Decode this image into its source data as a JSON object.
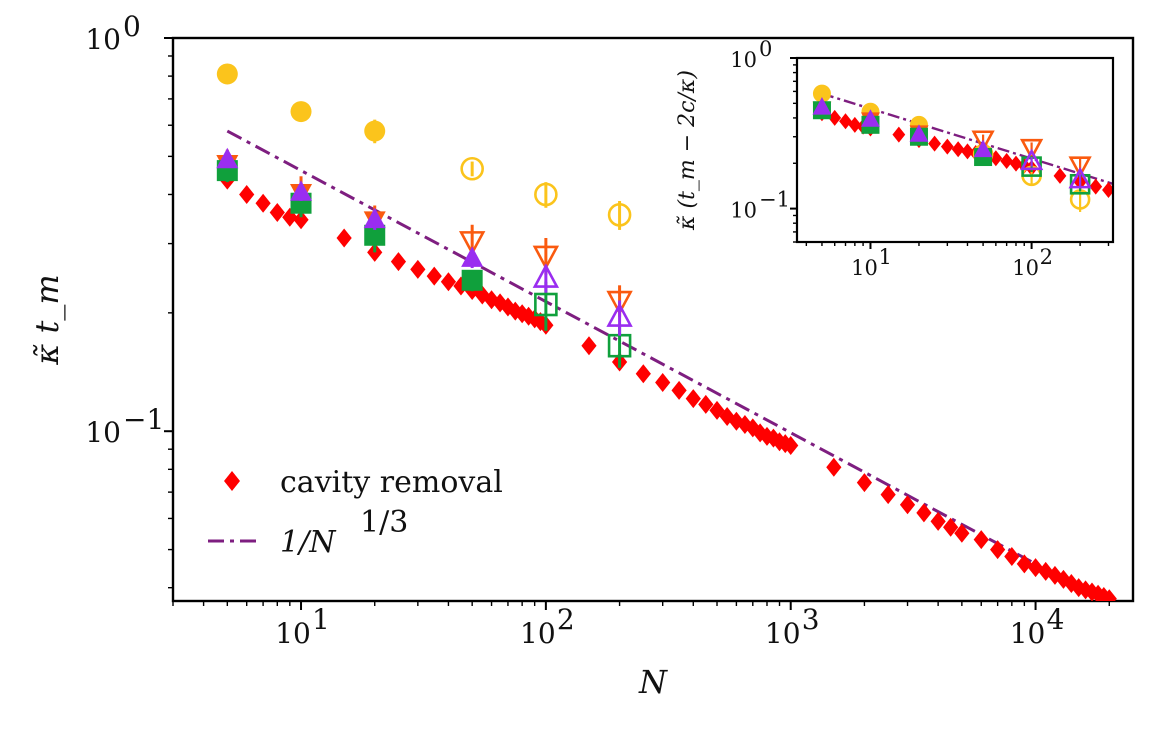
{
  "colors": {
    "red": "#ff0000",
    "yellow": "#fbc41c",
    "orange": "#fa5a0f",
    "green": "#10a03c",
    "purple": "#9a2df0",
    "dashdot": "#7e1e80"
  },
  "chart_data": [
    {
      "type": "scatter",
      "title": "",
      "xlabel": "N",
      "ylabel": "κ̃ t_m",
      "xscale": "log",
      "yscale": "log",
      "xlim": [
        3,
        25000
      ],
      "ylim": [
        0.037,
        1.0
      ],
      "x_tick_labels": [
        "10",
        "10",
        "10",
        "10"
      ],
      "x_tick_exponents": [
        "1",
        "2",
        "3",
        "4"
      ],
      "y_tick_labels": [
        "10",
        "10"
      ],
      "y_tick_exponents": [
        "0",
        "−1"
      ],
      "legend": {
        "placement": "lower-left",
        "entries": [
          {
            "label": "cavity removal",
            "marker": "diamond",
            "color": "red"
          },
          {
            "label": "1/N",
            "superscript": "1/3",
            "style": "dash-dot",
            "color": "dashdot"
          }
        ]
      },
      "series": [
        {
          "name": "cavity removal",
          "marker": "diamond",
          "color": "red",
          "x": [
            5,
            6,
            7,
            8,
            9,
            10,
            15,
            20,
            25,
            30,
            35,
            40,
            45,
            50,
            55,
            60,
            65,
            70,
            75,
            80,
            85,
            90,
            95,
            100,
            150,
            200,
            250,
            300,
            350,
            400,
            450,
            500,
            550,
            600,
            650,
            700,
            750,
            800,
            850,
            900,
            950,
            1000,
            1500,
            2000,
            2500,
            3000,
            3500,
            4000,
            4500,
            5000,
            6000,
            7000,
            8000,
            9000,
            10000,
            11000,
            12000,
            13000,
            14000,
            15000,
            16000,
            17000,
            18000,
            19000,
            20000
          ],
          "y": [
            0.435,
            0.4,
            0.38,
            0.36,
            0.35,
            0.345,
            0.31,
            0.285,
            0.27,
            0.258,
            0.248,
            0.24,
            0.234,
            0.228,
            0.222,
            0.216,
            0.212,
            0.207,
            0.202,
            0.199,
            0.196,
            0.193,
            0.19,
            0.186,
            0.165,
            0.15,
            0.14,
            0.133,
            0.127,
            0.121,
            0.117,
            0.113,
            0.109,
            0.106,
            0.104,
            0.102,
            0.099,
            0.097,
            0.096,
            0.094,
            0.093,
            0.092,
            0.081,
            0.074,
            0.069,
            0.065,
            0.062,
            0.059,
            0.057,
            0.055,
            0.053,
            0.05,
            0.048,
            0.046,
            0.045,
            0.044,
            0.043,
            0.042,
            0.041,
            0.04,
            0.0395,
            0.039,
            0.0385,
            0.038,
            0.0375
          ]
        },
        {
          "name": "1/N^(1/3) fit",
          "style": "dash-dot",
          "color": "dashdot",
          "x": [
            5,
            20000
          ],
          "y": [
            0.58,
            0.0365
          ]
        },
        {
          "name": "yellow filled circle",
          "marker": "circle",
          "filled": true,
          "color": "yellow",
          "x": [
            5,
            10,
            20
          ],
          "y": [
            0.81,
            0.65,
            0.58
          ],
          "yerr": [
            0.012,
            0.012,
            0.04
          ]
        },
        {
          "name": "yellow open circle",
          "marker": "circle",
          "filled": false,
          "color": "yellow",
          "x": [
            50,
            100,
            200
          ],
          "y": [
            0.465,
            0.4,
            0.355
          ],
          "yerr": [
            0.02,
            0.03,
            0.03
          ]
        },
        {
          "name": "orange filled triangle down",
          "marker": "triangle-down",
          "filled": true,
          "color": "orange",
          "x": [
            5,
            10,
            20
          ],
          "y": [
            0.48,
            0.405,
            0.345
          ],
          "yerr": [
            0.04,
            0.04,
            0.03
          ]
        },
        {
          "name": "orange open triangle down",
          "marker": "triangle-down",
          "filled": false,
          "color": "orange",
          "x": [
            50,
            100,
            200
          ],
          "y": [
            0.305,
            0.28,
            0.215
          ],
          "yerr": [
            0.03,
            0.03,
            0.02
          ]
        },
        {
          "name": "green filled square",
          "marker": "square",
          "filled": true,
          "color": "green",
          "x": [
            5,
            10,
            20,
            50
          ],
          "y": [
            0.46,
            0.38,
            0.315,
            0.242
          ],
          "yerr": [
            0.03,
            0.03,
            0.03,
            0.015
          ]
        },
        {
          "name": "green open square",
          "marker": "square",
          "filled": false,
          "color": "green",
          "x": [
            100,
            200
          ],
          "y": [
            0.21,
            0.165
          ],
          "yerr": [
            0.03,
            0.02
          ]
        },
        {
          "name": "purple filled triangle up",
          "marker": "triangle-up",
          "filled": true,
          "color": "purple",
          "x": [
            5,
            10,
            20,
            50
          ],
          "y": [
            0.49,
            0.405,
            0.345,
            0.275
          ],
          "yerr": [
            0.02,
            0.02,
            0.02,
            0.015
          ]
        },
        {
          "name": "purple open triangle up",
          "marker": "triangle-up",
          "filled": false,
          "color": "purple",
          "x": [
            100,
            200
          ],
          "y": [
            0.245,
            0.195
          ],
          "yerr": [
            0.02,
            0.02
          ]
        }
      ]
    },
    {
      "type": "scatter",
      "title": "",
      "xlabel": "",
      "ylabel": "κ̃ (t_m − 2c/κ)",
      "xscale": "log",
      "yscale": "log",
      "xlim": [
        3.5,
        320
      ],
      "ylim": [
        0.06,
        1.0
      ],
      "x_tick_labels": [
        "10",
        "10"
      ],
      "x_tick_exponents": [
        "1",
        "2"
      ],
      "y_tick_labels": [
        "10",
        "10"
      ],
      "y_tick_exponents": [
        "0",
        "−1"
      ],
      "series": [
        {
          "name": "inset cavity removal",
          "marker": "diamond",
          "color": "red",
          "x": [
            5,
            6,
            7,
            8,
            9,
            10,
            15,
            20,
            25,
            30,
            35,
            40,
            45,
            50,
            60,
            70,
            80,
            90,
            100,
            150,
            200,
            250,
            300
          ],
          "y": [
            0.43,
            0.4,
            0.38,
            0.36,
            0.35,
            0.34,
            0.31,
            0.285,
            0.27,
            0.258,
            0.248,
            0.24,
            0.234,
            0.228,
            0.216,
            0.207,
            0.199,
            0.193,
            0.186,
            0.165,
            0.15,
            0.14,
            0.133
          ]
        },
        {
          "name": "inset fit",
          "style": "dash-dot",
          "color": "dashdot",
          "x": [
            5,
            320
          ],
          "y": [
            0.58,
            0.146
          ]
        },
        {
          "name": "inset yellow filled circle",
          "marker": "circle",
          "filled": true,
          "color": "yellow",
          "x": [
            5,
            10,
            20
          ],
          "y": [
            0.58,
            0.44,
            0.36
          ],
          "yerr": [
            0.02,
            0.02,
            0.02
          ]
        },
        {
          "name": "inset yellow open circle",
          "marker": "circle",
          "filled": false,
          "color": "yellow",
          "x": [
            50,
            100,
            200
          ],
          "y": [
            0.23,
            0.165,
            0.115
          ],
          "yerr": [
            0.02,
            0.02,
            0.02
          ]
        },
        {
          "name": "inset orange filled triangle down",
          "marker": "triangle-down",
          "filled": true,
          "color": "orange",
          "x": [
            5,
            10,
            20
          ],
          "y": [
            0.46,
            0.39,
            0.32
          ],
          "yerr": [
            0.02,
            0.02,
            0.02
          ]
        },
        {
          "name": "inset orange open triangle down",
          "marker": "triangle-down",
          "filled": false,
          "color": "orange",
          "x": [
            50,
            100,
            200
          ],
          "y": [
            0.29,
            0.255,
            0.195
          ],
          "yerr": [
            0.02,
            0.02,
            0.02
          ]
        },
        {
          "name": "inset green filled square",
          "marker": "square",
          "filled": true,
          "color": "green",
          "x": [
            5,
            10,
            20,
            50
          ],
          "y": [
            0.45,
            0.36,
            0.3,
            0.22
          ],
          "yerr": [
            0.02,
            0.02,
            0.02,
            0.015
          ]
        },
        {
          "name": "inset green open square",
          "marker": "square",
          "filled": false,
          "color": "green",
          "x": [
            100,
            200
          ],
          "y": [
            0.19,
            0.145
          ],
          "yerr": [
            0.015,
            0.015
          ]
        },
        {
          "name": "inset purple filled triangle up",
          "marker": "triangle-up",
          "filled": true,
          "color": "purple",
          "x": [
            5,
            10,
            20,
            50
          ],
          "y": [
            0.47,
            0.39,
            0.31,
            0.245
          ],
          "yerr": [
            0.015,
            0.015,
            0.015,
            0.015
          ]
        },
        {
          "name": "inset purple open triangle up",
          "marker": "triangle-up",
          "filled": false,
          "color": "purple",
          "x": [
            100,
            200
          ],
          "y": [
            0.205,
            0.155
          ],
          "yerr": [
            0.015,
            0.015
          ]
        }
      ]
    }
  ]
}
